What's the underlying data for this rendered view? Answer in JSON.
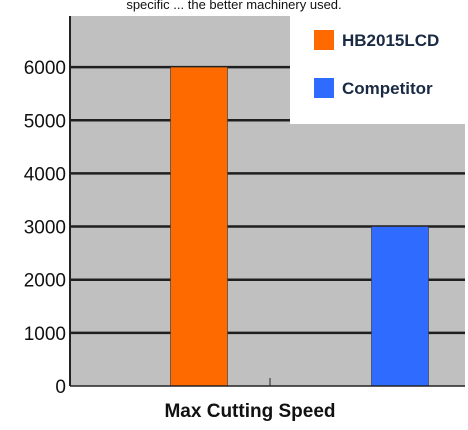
{
  "top_text": "specific ... the better machinery used.",
  "chart_data": {
    "type": "bar",
    "title": "",
    "xlabel": "Max Cutting Speed",
    "ylabel": "",
    "ylim": [
      0,
      7000
    ],
    "yticks": [
      0,
      1000,
      2000,
      3000,
      4000,
      5000,
      6000
    ],
    "grid": true,
    "legend_position": "top-right",
    "series": [
      {
        "name": "HB2015LCD",
        "color": "#ff6a00",
        "value": 6000
      },
      {
        "name": "Competitor",
        "color": "#2f6bff",
        "value": 3000
      }
    ]
  },
  "colors": {
    "plot_background": "#c0c0c0",
    "gridline": "#1f1f1f",
    "legend_background": "#ffffff"
  }
}
